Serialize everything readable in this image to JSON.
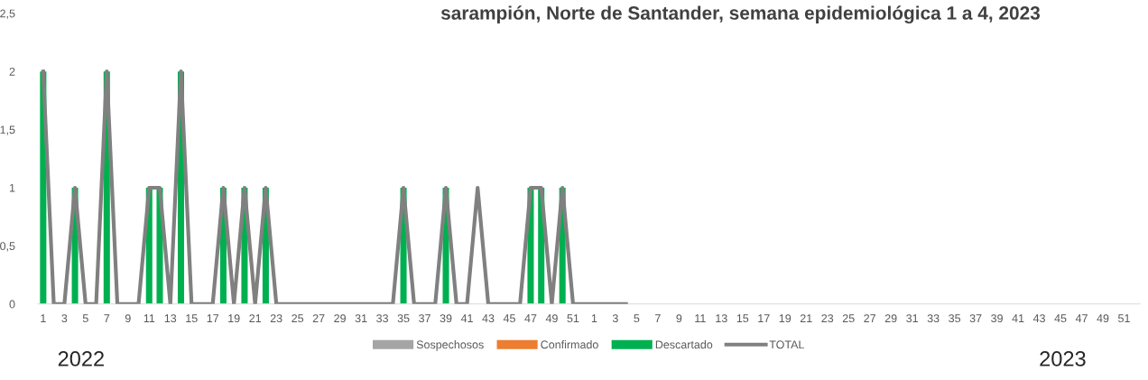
{
  "chart_data": {
    "type": "bar",
    "title": "sarampión, Norte de Santander, semana epidemiológica 1 a 4, 2023",
    "categories": [
      "1",
      null,
      "3",
      null,
      "5",
      null,
      "7",
      null,
      "9",
      null,
      "11",
      null,
      "13",
      null,
      "15",
      null,
      "17",
      null,
      "19",
      null,
      "21",
      null,
      "23",
      null,
      "25",
      null,
      "27",
      null,
      "29",
      null,
      "31",
      null,
      "33",
      null,
      "35",
      null,
      "37",
      null,
      "39",
      null,
      "41",
      null,
      "43",
      null,
      "45",
      null,
      "47",
      null,
      "49",
      null,
      "51",
      null,
      "1",
      null,
      "3",
      null,
      "5",
      null,
      "7",
      null,
      "9",
      null,
      "11",
      null,
      "13",
      null,
      "15",
      null,
      "17",
      null,
      "19",
      null,
      "21",
      null,
      "23",
      null,
      "25",
      null,
      "27",
      null,
      "29",
      null,
      "31",
      null,
      "33",
      null,
      "35",
      null,
      "37",
      null,
      "39",
      null,
      "41",
      null,
      "43",
      null,
      "45",
      null,
      "47",
      null,
      "49",
      null,
      "51",
      null
    ],
    "series": [
      {
        "name": "Sospechosos",
        "color": "#a5a5a5",
        "values": [
          0,
          0,
          0,
          0,
          0,
          0,
          0,
          0,
          0,
          0,
          0,
          0,
          0,
          0,
          0,
          0,
          0,
          0,
          0,
          0,
          0,
          0,
          0,
          0,
          0,
          0,
          0,
          0,
          0,
          0,
          0,
          0,
          0,
          0,
          0,
          0,
          0,
          0,
          0,
          0,
          0,
          0,
          0,
          0,
          0,
          0,
          0,
          0,
          0,
          0,
          0,
          0,
          0,
          0,
          0,
          0,
          null,
          null,
          null,
          null,
          null,
          null,
          null,
          null,
          null,
          null,
          null,
          null,
          null,
          null,
          null,
          null,
          null,
          null,
          null,
          null,
          null,
          null,
          null,
          null,
          null,
          null,
          null,
          null,
          null,
          null,
          null,
          null,
          null,
          null,
          null,
          null,
          null,
          null,
          null,
          null,
          null,
          null,
          null,
          null,
          null,
          null,
          null,
          null
        ]
      },
      {
        "name": "Confirmado",
        "color": "#ed7d31",
        "values": [
          0,
          0,
          0,
          0,
          0,
          0,
          0,
          0,
          0,
          0,
          0,
          0,
          0,
          0,
          0,
          0,
          0,
          0,
          0,
          0,
          0,
          0,
          0,
          0,
          0,
          0,
          0,
          0,
          0,
          0,
          0,
          0,
          0,
          0,
          0,
          0,
          0,
          0,
          0,
          0,
          0,
          0,
          0,
          0,
          0,
          0,
          0,
          0,
          0,
          0,
          0,
          0,
          0,
          0,
          0,
          0,
          null,
          null,
          null,
          null,
          null,
          null,
          null,
          null,
          null,
          null,
          null,
          null,
          null,
          null,
          null,
          null,
          null,
          null,
          null,
          null,
          null,
          null,
          null,
          null,
          null,
          null,
          null,
          null,
          null,
          null,
          null,
          null,
          null,
          null,
          null,
          null,
          null,
          null,
          null,
          null,
          null,
          null,
          null,
          null,
          null,
          null,
          null,
          null
        ]
      },
      {
        "name": "Descartado",
        "color": "#00b050",
        "values": [
          2,
          0,
          0,
          1,
          0,
          0,
          2,
          0,
          0,
          0,
          1,
          1,
          0,
          2,
          0,
          0,
          0,
          1,
          0,
          1,
          0,
          1,
          0,
          0,
          0,
          0,
          0,
          0,
          0,
          0,
          0,
          0,
          0,
          0,
          1,
          0,
          0,
          0,
          1,
          0,
          0,
          0,
          0,
          0,
          0,
          0,
          1,
          1,
          0,
          1,
          0,
          0,
          0,
          0,
          0,
          0,
          null,
          null,
          null,
          null,
          null,
          null,
          null,
          null,
          null,
          null,
          null,
          null,
          null,
          null,
          null,
          null,
          null,
          null,
          null,
          null,
          null,
          null,
          null,
          null,
          null,
          null,
          null,
          null,
          null,
          null,
          null,
          null,
          null,
          null,
          null,
          null,
          null,
          null,
          null,
          null,
          null,
          null,
          null,
          null,
          null,
          null,
          null,
          null
        ]
      },
      {
        "name": "TOTAL",
        "type": "line",
        "color": "#808080",
        "values": [
          2,
          0,
          0,
          1,
          0,
          0,
          2,
          0,
          0,
          0,
          1,
          1,
          0,
          2,
          0,
          0,
          0,
          1,
          0,
          1,
          0,
          1,
          0,
          0,
          0,
          0,
          0,
          0,
          0,
          0,
          0,
          0,
          0,
          0,
          1,
          0,
          0,
          0,
          1,
          0,
          0,
          1,
          0,
          0,
          0,
          0,
          1,
          1,
          0,
          1,
          0,
          0,
          0,
          0,
          0,
          0,
          null,
          null,
          null,
          null,
          null,
          null,
          null,
          null,
          null,
          null,
          null,
          null,
          null,
          null,
          null,
          null,
          null,
          null,
          null,
          null,
          null,
          null,
          null,
          null,
          null,
          null,
          null,
          null,
          null,
          null,
          null,
          null,
          null,
          null,
          null,
          null,
          null,
          null,
          null,
          null,
          null,
          null,
          null,
          null,
          null,
          null,
          null,
          null
        ]
      }
    ],
    "ylim": [
      0,
      2.5
    ],
    "yticks": [
      0,
      {
        "value": 0.5,
        "label": "0,5"
      },
      1,
      {
        "value": 1.5,
        "label": "1,5"
      },
      2,
      {
        "value": 2.5,
        "label": "2,5"
      }
    ],
    "grid": false,
    "legend": "bottom",
    "annotations": [
      "2022",
      "2023"
    ]
  }
}
